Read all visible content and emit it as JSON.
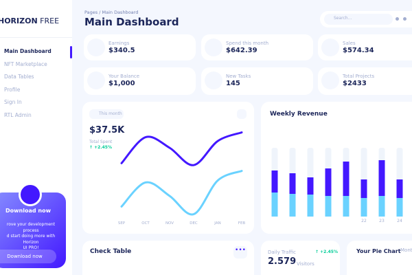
{
  "sidebar": {
    "logo": {
      "bold": "HORIZON",
      "light": "FREE"
    },
    "menu": [
      "Main Dashboard",
      "NFT Marketplace",
      "Data Tables",
      "Profile",
      "Sign In",
      "RTL Admin"
    ],
    "promo": {
      "title": "Download now",
      "lines": [
        "rove your development process",
        "d start doing more with Horizon",
        "UI PRO!"
      ],
      "button": "Download now"
    }
  },
  "header": {
    "breadcrumb": {
      "parent": "Pages",
      "separator": "/",
      "current": "Main Dashboard"
    },
    "title": "Main Dashboard",
    "search_placeholder": "Search..."
  },
  "stats": [
    {
      "label": "Earnings",
      "value": "$340.5"
    },
    {
      "label": "Spend this month",
      "value": "$642.39"
    },
    {
      "label": "Sales",
      "value": "$574.34"
    },
    {
      "label": "Your Balance",
      "value": "$1,000"
    },
    {
      "label": "New Tasks",
      "value": "145"
    },
    {
      "label": "Total Projects",
      "value": "$2433"
    }
  ],
  "spent_card": {
    "period": "This month",
    "value": "$37.5K",
    "caption": "Total Spent",
    "change": "+2.45%",
    "chart_data": {
      "type": "line",
      "categories": [
        "SEP",
        "OCT",
        "NOV",
        "DEC",
        "JAN",
        "FEB"
      ],
      "ylim": [
        0,
        100
      ],
      "series": [
        {
          "color": "#4318ff",
          "values": [
            59,
            86,
            75,
            57,
            82,
            91
          ]
        },
        {
          "color": "#6ad2ff",
          "values": [
            14,
            39,
            25,
            6,
            41,
            51
          ]
        }
      ]
    }
  },
  "revenue_card": {
    "title": "Weekly Revenue",
    "chart_data": {
      "type": "bar",
      "stacked": true,
      "categories": [
        null,
        null,
        null,
        null,
        null,
        "22",
        "23",
        "24"
      ],
      "ylim": [
        0,
        100
      ],
      "track_color": "#eff4fb",
      "series": [
        {
          "color": "#6ad2ff",
          "values": [
            35,
            33,
            32,
            30,
            30,
            27,
            30,
            27
          ]
        },
        {
          "color": "#4318ff",
          "values": [
            32,
            30,
            25,
            40,
            50,
            27,
            52,
            27
          ]
        }
      ]
    }
  },
  "check_table": {
    "title": "Check Table"
  },
  "daily_traffic": {
    "label": "Daily Traffic",
    "value": "2.579",
    "unit": "Visitors",
    "change": "+2.45%"
  },
  "pie_card": {
    "title": "Your Pie Chart",
    "period": "Month"
  }
}
